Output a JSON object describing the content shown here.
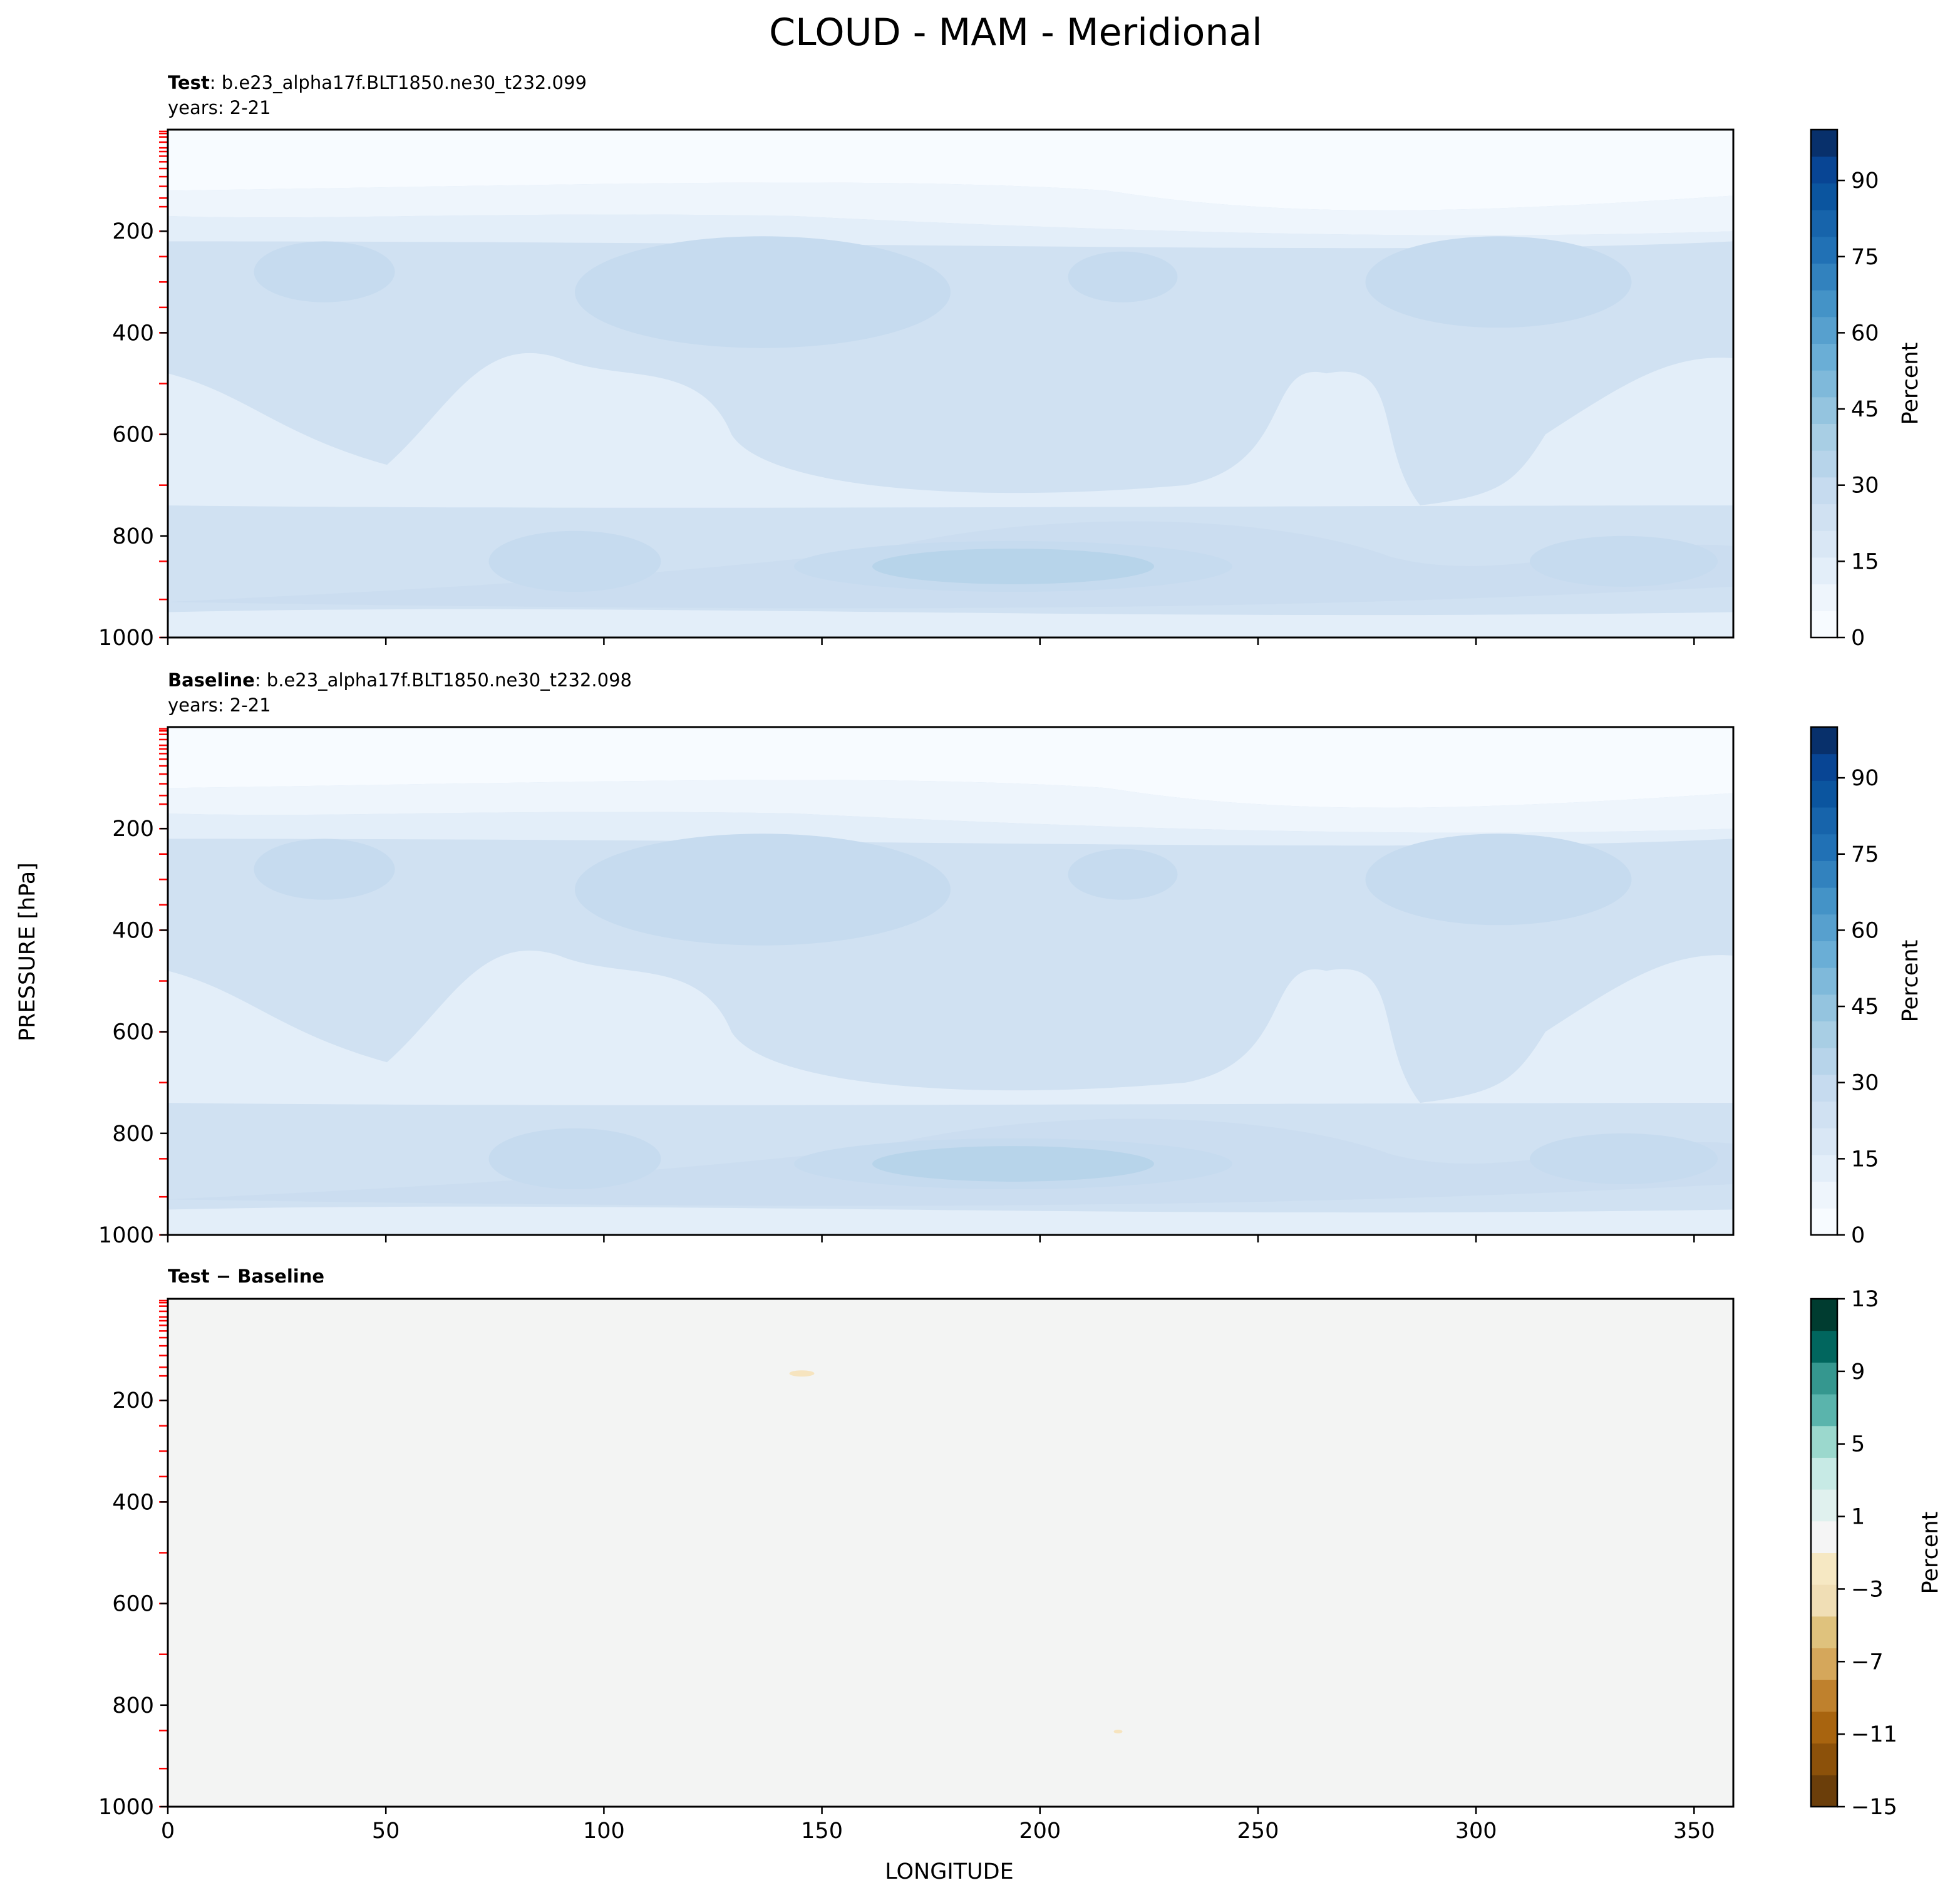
{
  "suptitle": "CLOUD - MAM - Meridional",
  "ylabel": "PRESSURE [hPa]",
  "xlabel": "LONGITUDE",
  "colors": {
    "blues": [
      "#f7fbff",
      "#eef5fc",
      "#e3eef9",
      "#d9e7f5",
      "#d0e1f2",
      "#c6dbef",
      "#b7d4ea",
      "#a8cee4",
      "#94c4df",
      "#7fb9da",
      "#6aaed6",
      "#57a0ce",
      "#4493c7",
      "#3282be",
      "#2171b5",
      "#1764ab",
      "#0b559f",
      "#084594",
      "#08306b"
    ],
    "diff": [
      "#6b3e0a",
      "#8c510a",
      "#a8640f",
      "#bf812d",
      "#d5a75b",
      "#dfc27d",
      "#f0deb5",
      "#f6e8c3",
      "#f5f5f5",
      "#e0f1ee",
      "#c7eae5",
      "#9bd8cd",
      "#5ab4ac",
      "#35978f",
      "#01665e",
      "#003c30"
    ],
    "pressure_levels_mark": "#ff0000"
  },
  "chart_data": [
    {
      "type": "heatmap",
      "title_bold": "Test",
      "title_rest": ": b.e23_alpha17f.BLT1850.ne30_t232.099",
      "subtitle": "years: 2-21",
      "xlim": [
        0,
        359
      ],
      "ylim": [
        1000,
        0
      ],
      "xticks": [
        0,
        50,
        100,
        150,
        200,
        250,
        300,
        350
      ],
      "yticks": [
        200,
        400,
        600,
        800,
        1000
      ],
      "colorbar": {
        "label": "Percent",
        "min": 0,
        "max": 100,
        "ticks": [
          0,
          15,
          30,
          45,
          60,
          75,
          90
        ]
      }
    },
    {
      "type": "heatmap",
      "title_bold": "Baseline",
      "title_rest": ": b.e23_alpha17f.BLT1850.ne30_t232.098",
      "subtitle": "years: 2-21",
      "xlim": [
        0,
        359
      ],
      "ylim": [
        1000,
        0
      ],
      "xticks": [
        0,
        50,
        100,
        150,
        200,
        250,
        300,
        350
      ],
      "yticks": [
        200,
        400,
        600,
        800,
        1000
      ],
      "colorbar": {
        "label": "Percent",
        "min": 0,
        "max": 100,
        "ticks": [
          0,
          15,
          30,
          45,
          60,
          75,
          90
        ]
      }
    },
    {
      "type": "heatmap",
      "title_bold": "Test − Baseline",
      "title_rest": "",
      "subtitle": "",
      "xlim": [
        0,
        359
      ],
      "ylim": [
        1000,
        0
      ],
      "xticks": [
        0,
        50,
        100,
        150,
        200,
        250,
        300,
        350
      ],
      "xticklabels": [
        "0",
        "50",
        "100",
        "150",
        "200",
        "250",
        "300",
        "350"
      ],
      "yticks": [
        200,
        400,
        600,
        800,
        1000
      ],
      "colorbar": {
        "label": "Percent",
        "min": -15,
        "max": 13,
        "ticks": [
          13,
          9,
          5,
          1,
          -3,
          -7,
          -11,
          -15
        ],
        "ticklabels": [
          "13",
          "9",
          "5",
          "1",
          "−3",
          "−7",
          "−11",
          "−15"
        ]
      }
    }
  ],
  "model_levels_hpa": [
    3.6,
    7.6,
    14.4,
    24.6,
    35.9,
    43.2,
    52.3,
    63.3,
    76.5,
    92.6,
    111.7,
    134.8,
    151.8,
    200.0,
    250.0,
    300.0,
    350.0,
    400.0,
    500.0,
    600.0,
    700.0,
    850.0,
    925.0,
    1000.0
  ]
}
